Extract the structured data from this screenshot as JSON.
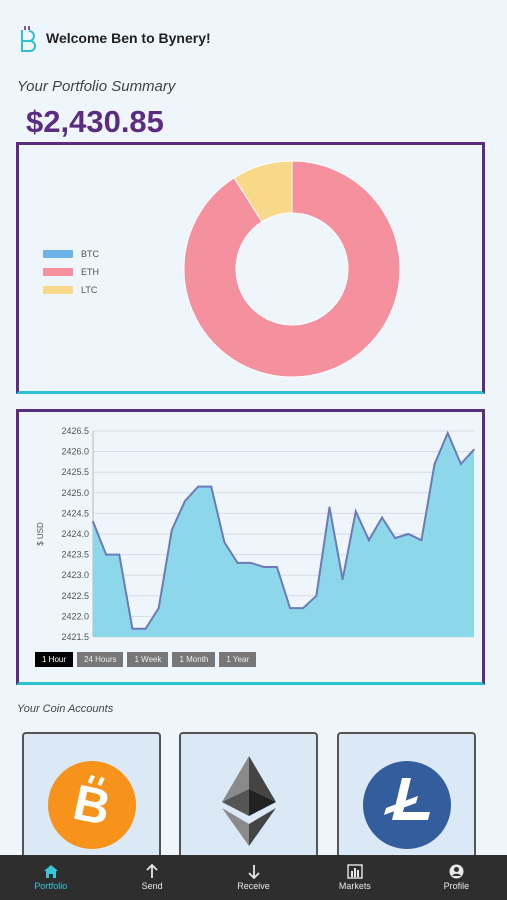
{
  "header": {
    "welcome": "Welcome Ben to Bynery!",
    "logo_icon": "bynery-logo-icon"
  },
  "portfolio": {
    "title": "Your Portfolio Summary",
    "total": "$2,430.85",
    "legend": [
      {
        "label": "BTC",
        "color": "#6eb2ea",
        "value": 0
      },
      {
        "label": "ETH",
        "color": "#f5919f",
        "value": 91
      },
      {
        "label": "LTC",
        "color": "#f8d98a",
        "value": 9
      }
    ]
  },
  "chart_data": {
    "type": "area",
    "ylabel": "$ USD",
    "yticks": [
      "2426.5",
      "2426.0",
      "2425.5",
      "2425.0",
      "2424.5",
      "2424.0",
      "2423.5",
      "2423.0",
      "2422.5",
      "2422.0",
      "2421.5"
    ],
    "ylim": [
      2421.5,
      2426.5
    ],
    "grid": true,
    "values": [
      2424.3,
      2423.5,
      2423.5,
      2421.7,
      2421.7,
      2422.2,
      2424.1,
      2424.8,
      2425.15,
      2425.15,
      2423.8,
      2423.3,
      2423.3,
      2423.2,
      2423.2,
      2422.2,
      2422.2,
      2422.5,
      2424.65,
      2422.9,
      2424.55,
      2423.85,
      2424.4,
      2423.9,
      2424.0,
      2423.85,
      2425.7,
      2426.45,
      2425.7,
      2426.05
    ],
    "fill_color": "#8cd8ea",
    "line_color": "#6c7ab6"
  },
  "range": {
    "buttons": [
      "1 Hour",
      "24 Hours",
      "1 Week",
      "1 Month",
      "1 Year"
    ],
    "active": "1 Hour"
  },
  "accounts": {
    "title": "Your Coin Accounts",
    "coins": [
      {
        "name": "bitcoin",
        "icon": "bitcoin-icon"
      },
      {
        "name": "ethereum",
        "icon": "ethereum-icon"
      },
      {
        "name": "litecoin",
        "icon": "litecoin-icon"
      }
    ]
  },
  "nav": {
    "items": [
      {
        "label": "Portfolio",
        "icon": "home-icon"
      },
      {
        "label": "Send",
        "icon": "arrow-up-icon"
      },
      {
        "label": "Receive",
        "icon": "arrow-down-icon"
      },
      {
        "label": "Markets",
        "icon": "bar-chart-icon"
      },
      {
        "label": "Profile",
        "icon": "user-icon"
      }
    ],
    "active": "Portfolio",
    "active_color": "#38c6dc"
  }
}
